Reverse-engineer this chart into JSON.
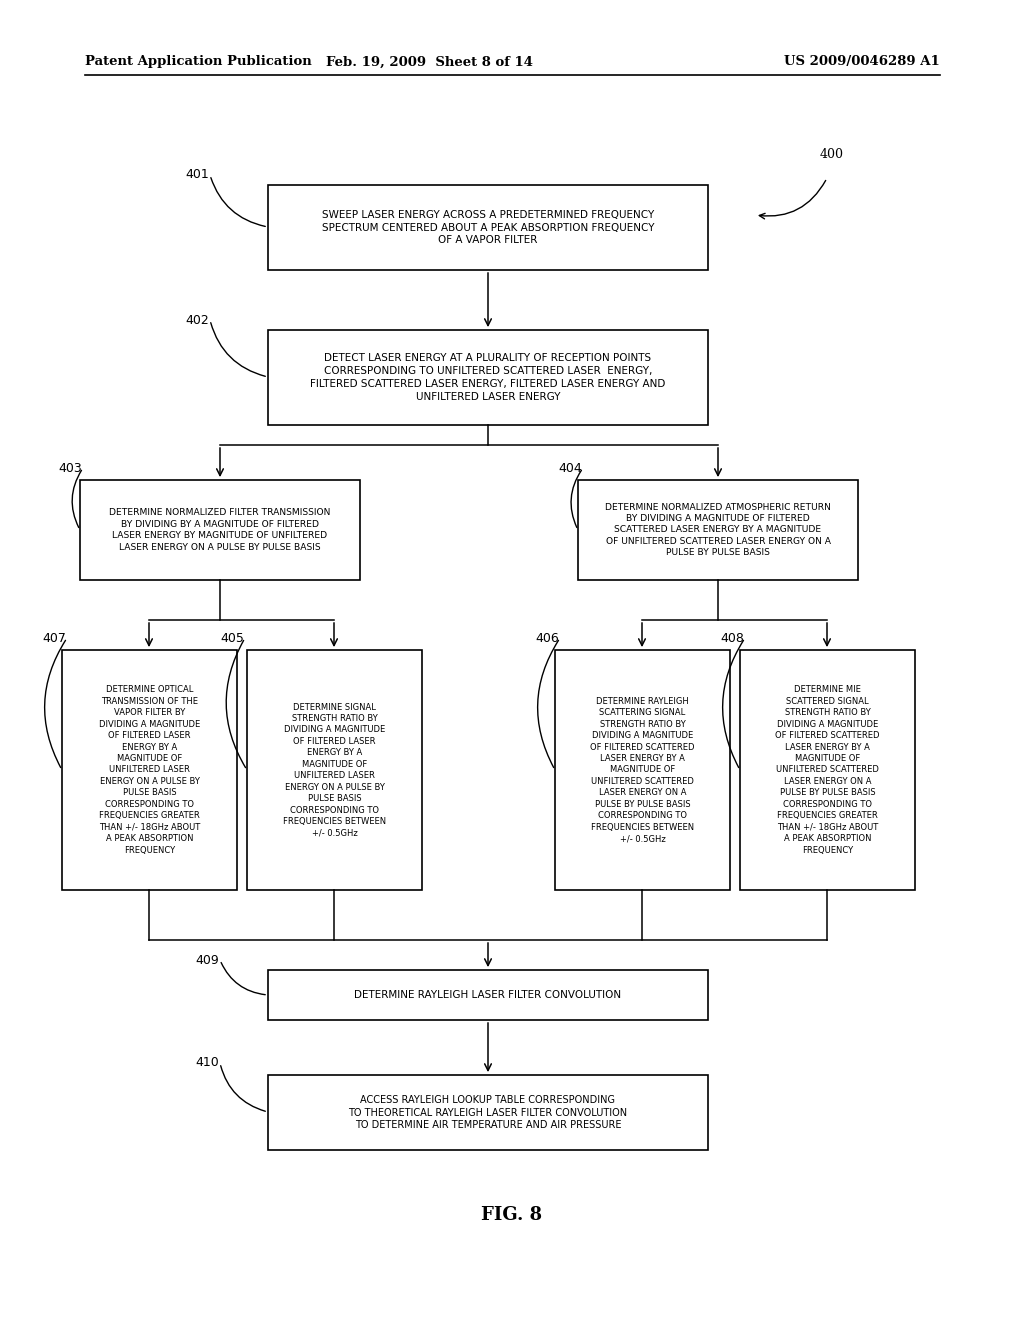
{
  "bg_color": "#ffffff",
  "header_left": "Patent Application Publication",
  "header_mid": "Feb. 19, 2009  Sheet 8 of 14",
  "header_right": "US 2009/0046289 A1",
  "figure_label": "FIG. 8",
  "box_401_text": "SWEEP LASER ENERGY ACROSS A PREDETERMINED FREQUENCY\nSPECTRUM CENTERED ABOUT A PEAK ABSORPTION FREQUENCY\nOF A VAPOR FILTER",
  "box_402_text": "DETECT LASER ENERGY AT A PLURALITY OF RECEPTION POINTS\nCORRESPONDING TO UNFILTERED SCATTERED LASER  ENERGY,\nFILTERED SCATTERED LASER ENERGY, FILTERED LASER ENERGY AND\nUNFILTERED LASER ENERGY",
  "box_403_text": "DETERMINE NORMALIZED FILTER TRANSMISSION\nBY DIVIDING BY A MAGNITUDE OF FILTERED\nLASER ENERGY BY MAGNITUDE OF UNFILTERED\nLASER ENERGY ON A PULSE BY PULSE BASIS",
  "box_404_text": "DETERMINE NORMALIZED ATMOSPHERIC RETURN\nBY DIVIDING A MAGNITUDE OF FILTERED\nSCATTERED LASER ENERGY BY A MAGNITUDE\nOF UNFILTERED SCATTERED LASER ENERGY ON A\nPULSE BY PULSE BASIS",
  "box_407_text": "DETERMINE OPTICAL\nTRANSMISSION OF THE\nVAPOR FILTER BY\nDIVIDING A MAGNITUDE\nOF FILTERED LASER\nENERGY BY A\nMAGNITUDE OF\nUNFILTERED LASER\nENERGY ON A PULSE BY\nPULSE BASIS\nCORRESPONDING TO\nFREQUENCIES GREATER\nTHAN +/- 18GHz ABOUT\nA PEAK ABSORPTION\nFREQUENCY",
  "box_405_text": "DETERMINE SIGNAL\nSTRENGTH RATIO BY\nDIVIDING A MAGNITUDE\nOF FILTERED LASER\nENERGY BY A\nMAGNITUDE OF\nUNFILTERED LASER\nENERGY ON A PULSE BY\nPULSE BASIS\nCORRESPONDING TO\nFREQUENCIES BETWEEN\n+/- 0.5GHz",
  "box_406_text": "DETERMINE RAYLEIGH\nSCATTERING SIGNAL\nSTRENGTH RATIO BY\nDIVIDING A MAGNITUDE\nOF FILTERED SCATTERED\nLASER ENERGY BY A\nMAGNITUDE OF\nUNFILTERED SCATTERED\nLASER ENERGY ON A\nPULSE BY PULSE BASIS\nCORRESPONDING TO\nFREQUENCIES BETWEEN\n+/- 0.5GHz",
  "box_408_text": "DETERMINE MIE\nSCATTERED SIGNAL\nSTRENGTH RATIO BY\nDIVIDING A MAGNITUDE\nOF FILTERED SCATTERED\nLASER ENERGY BY A\nMAGNITUDE OF\nUNFILTERED SCATTERED\nLASER ENERGY ON A\nPULSE BY PULSE BASIS\nCORRESPONDING TO\nFREQUENCIES GREATER\nTHAN +/- 18GHz ABOUT\nA PEAK ABSORPTION\nFREQUENCY",
  "box_409_text": "DETERMINE RAYLEIGH LASER FILTER CONVOLUTION",
  "box_410_text": "ACCESS RAYLEIGH LOOKUP TABLE CORRESPONDING\nTO THEORETICAL RAYLEIGH LASER FILTER CONVOLUTION\nTO DETERMINE AIR TEMPERATURE AND AIR PRESSURE"
}
